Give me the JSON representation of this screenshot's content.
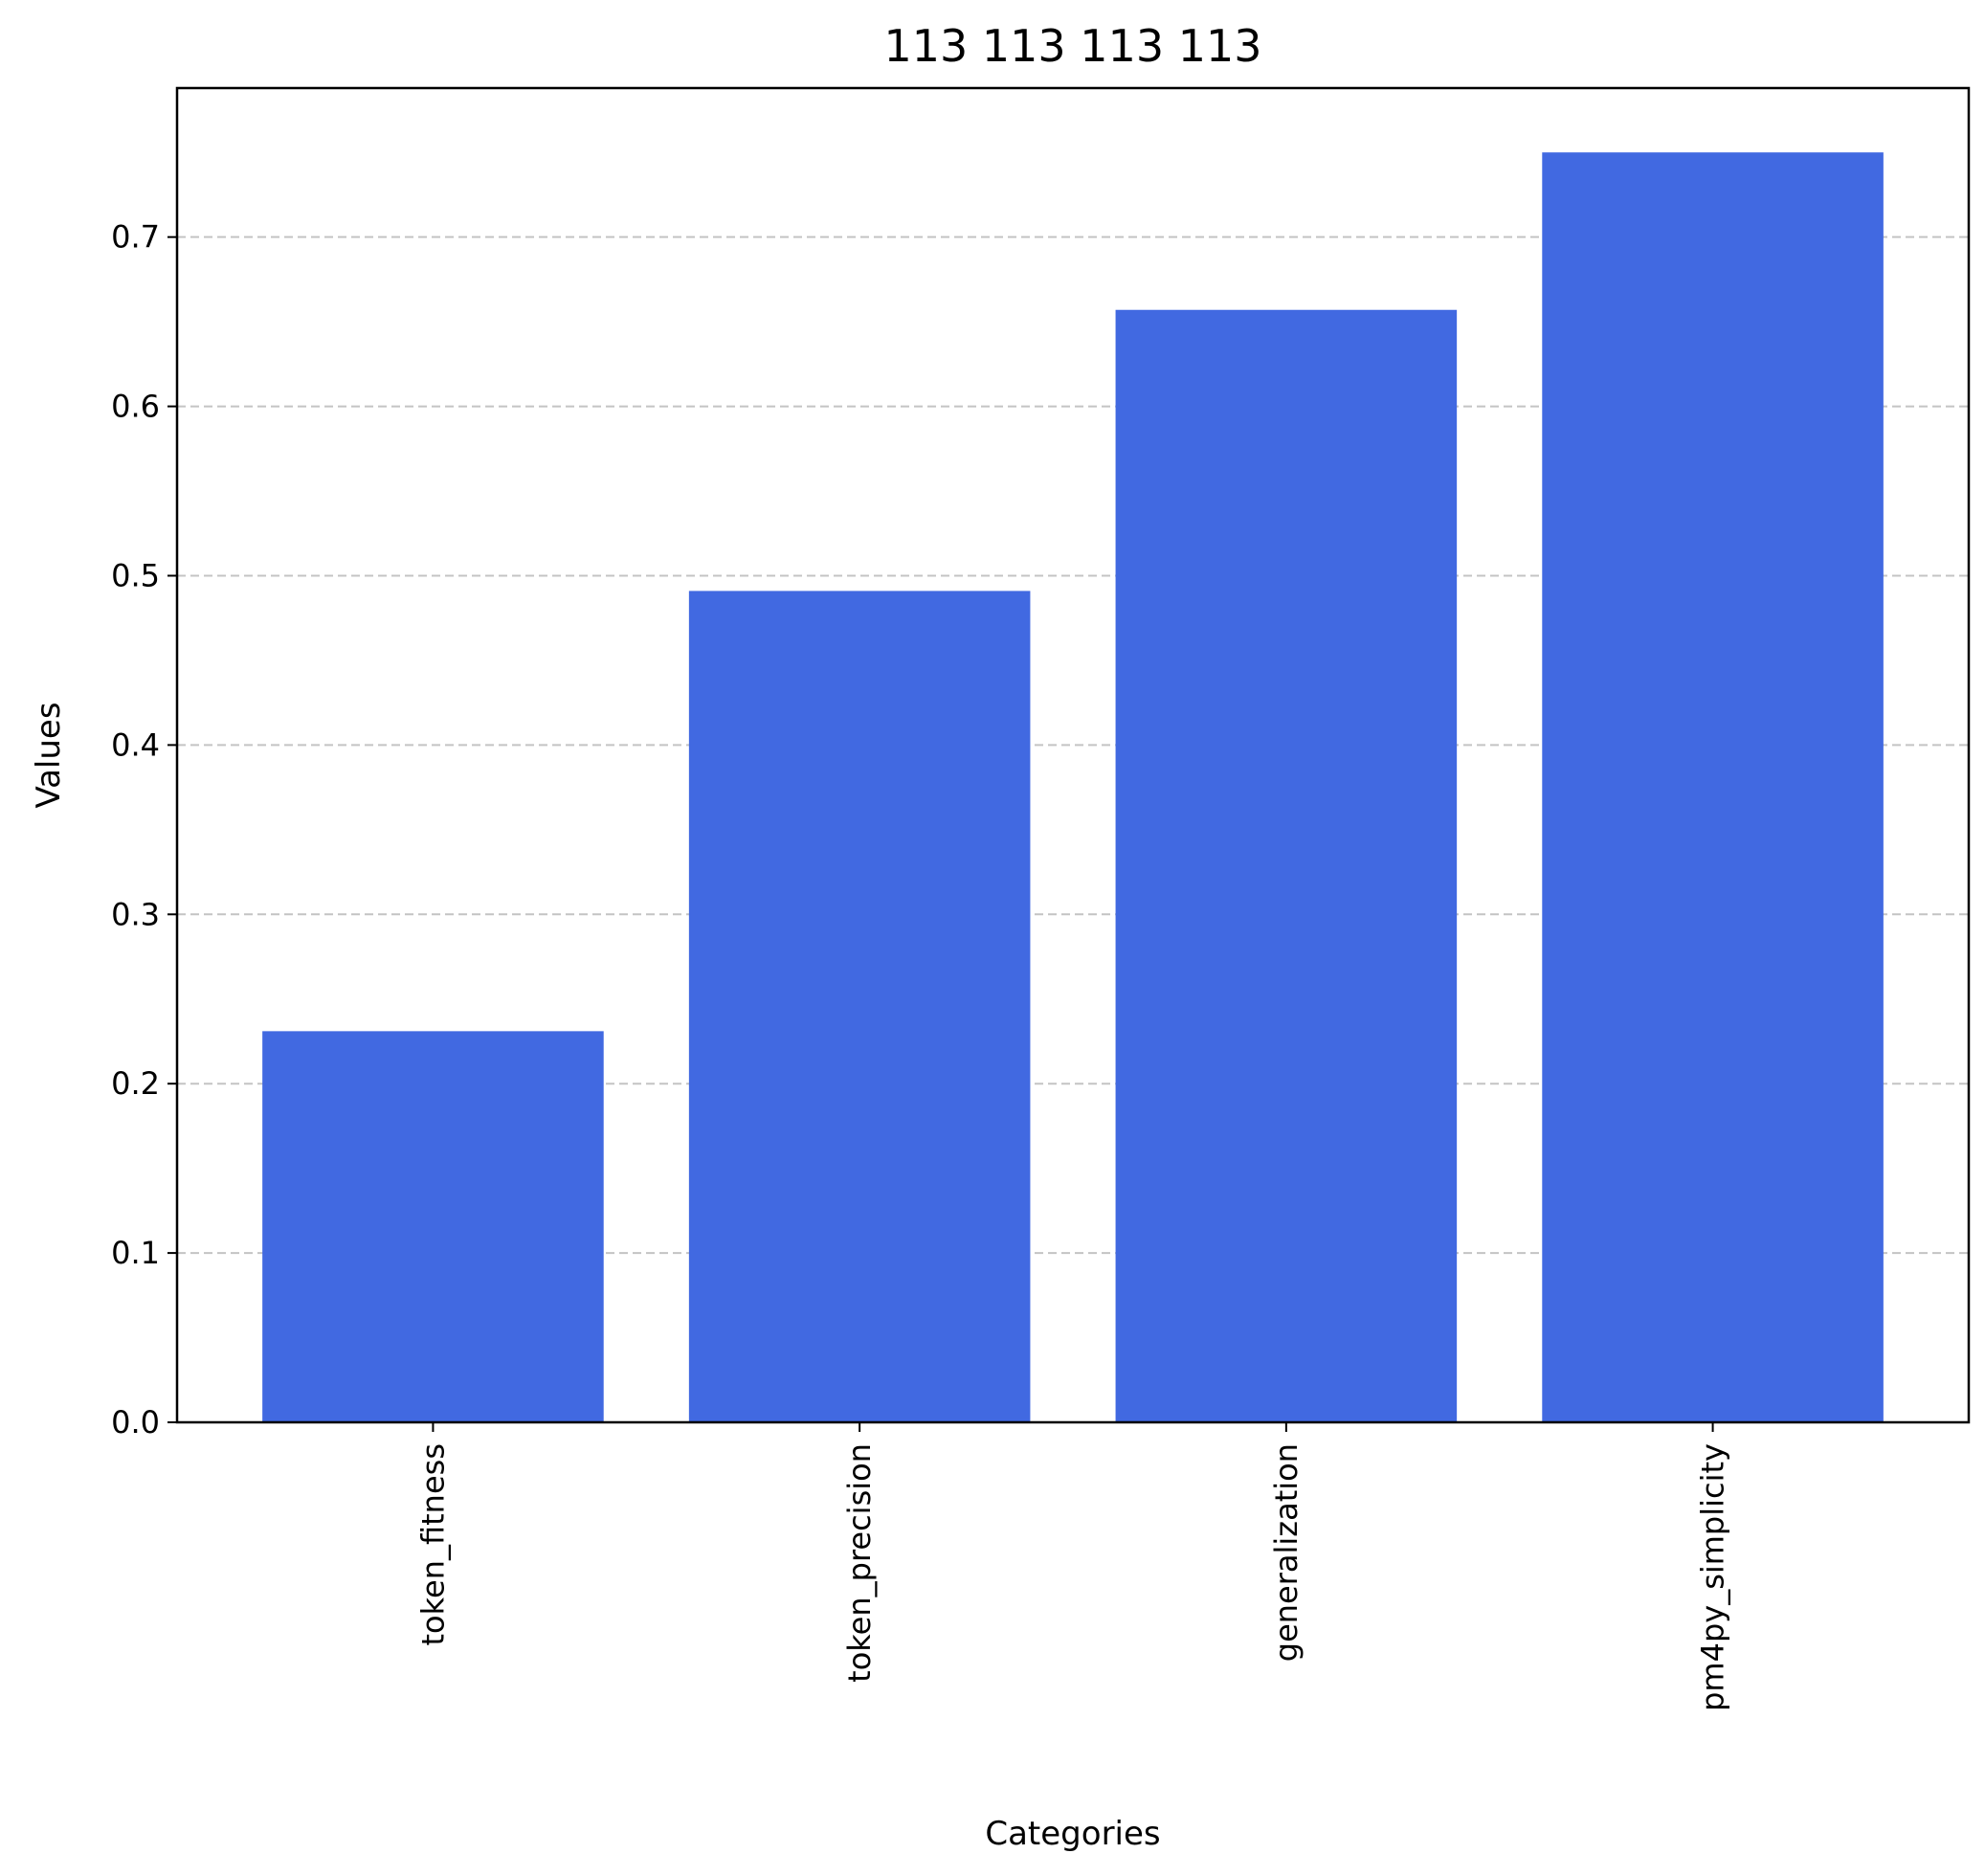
{
  "chart_data": {
    "type": "bar",
    "title": "113  113  113  113",
    "xlabel": "Categories",
    "ylabel": "Values",
    "categories": [
      "token_fitness",
      "token_precision",
      "generalization",
      "pm4py_simplicity"
    ],
    "values": [
      0.231,
      0.491,
      0.657,
      0.75
    ],
    "ylim": [
      0,
      0.788
    ],
    "yticks": [
      "0.0",
      "0.1",
      "0.2",
      "0.3",
      "0.4",
      "0.5",
      "0.6",
      "0.7"
    ],
    "grid": "y-dashed",
    "bar_color": "#4169e1",
    "grid_color": "#c4c4c4"
  }
}
